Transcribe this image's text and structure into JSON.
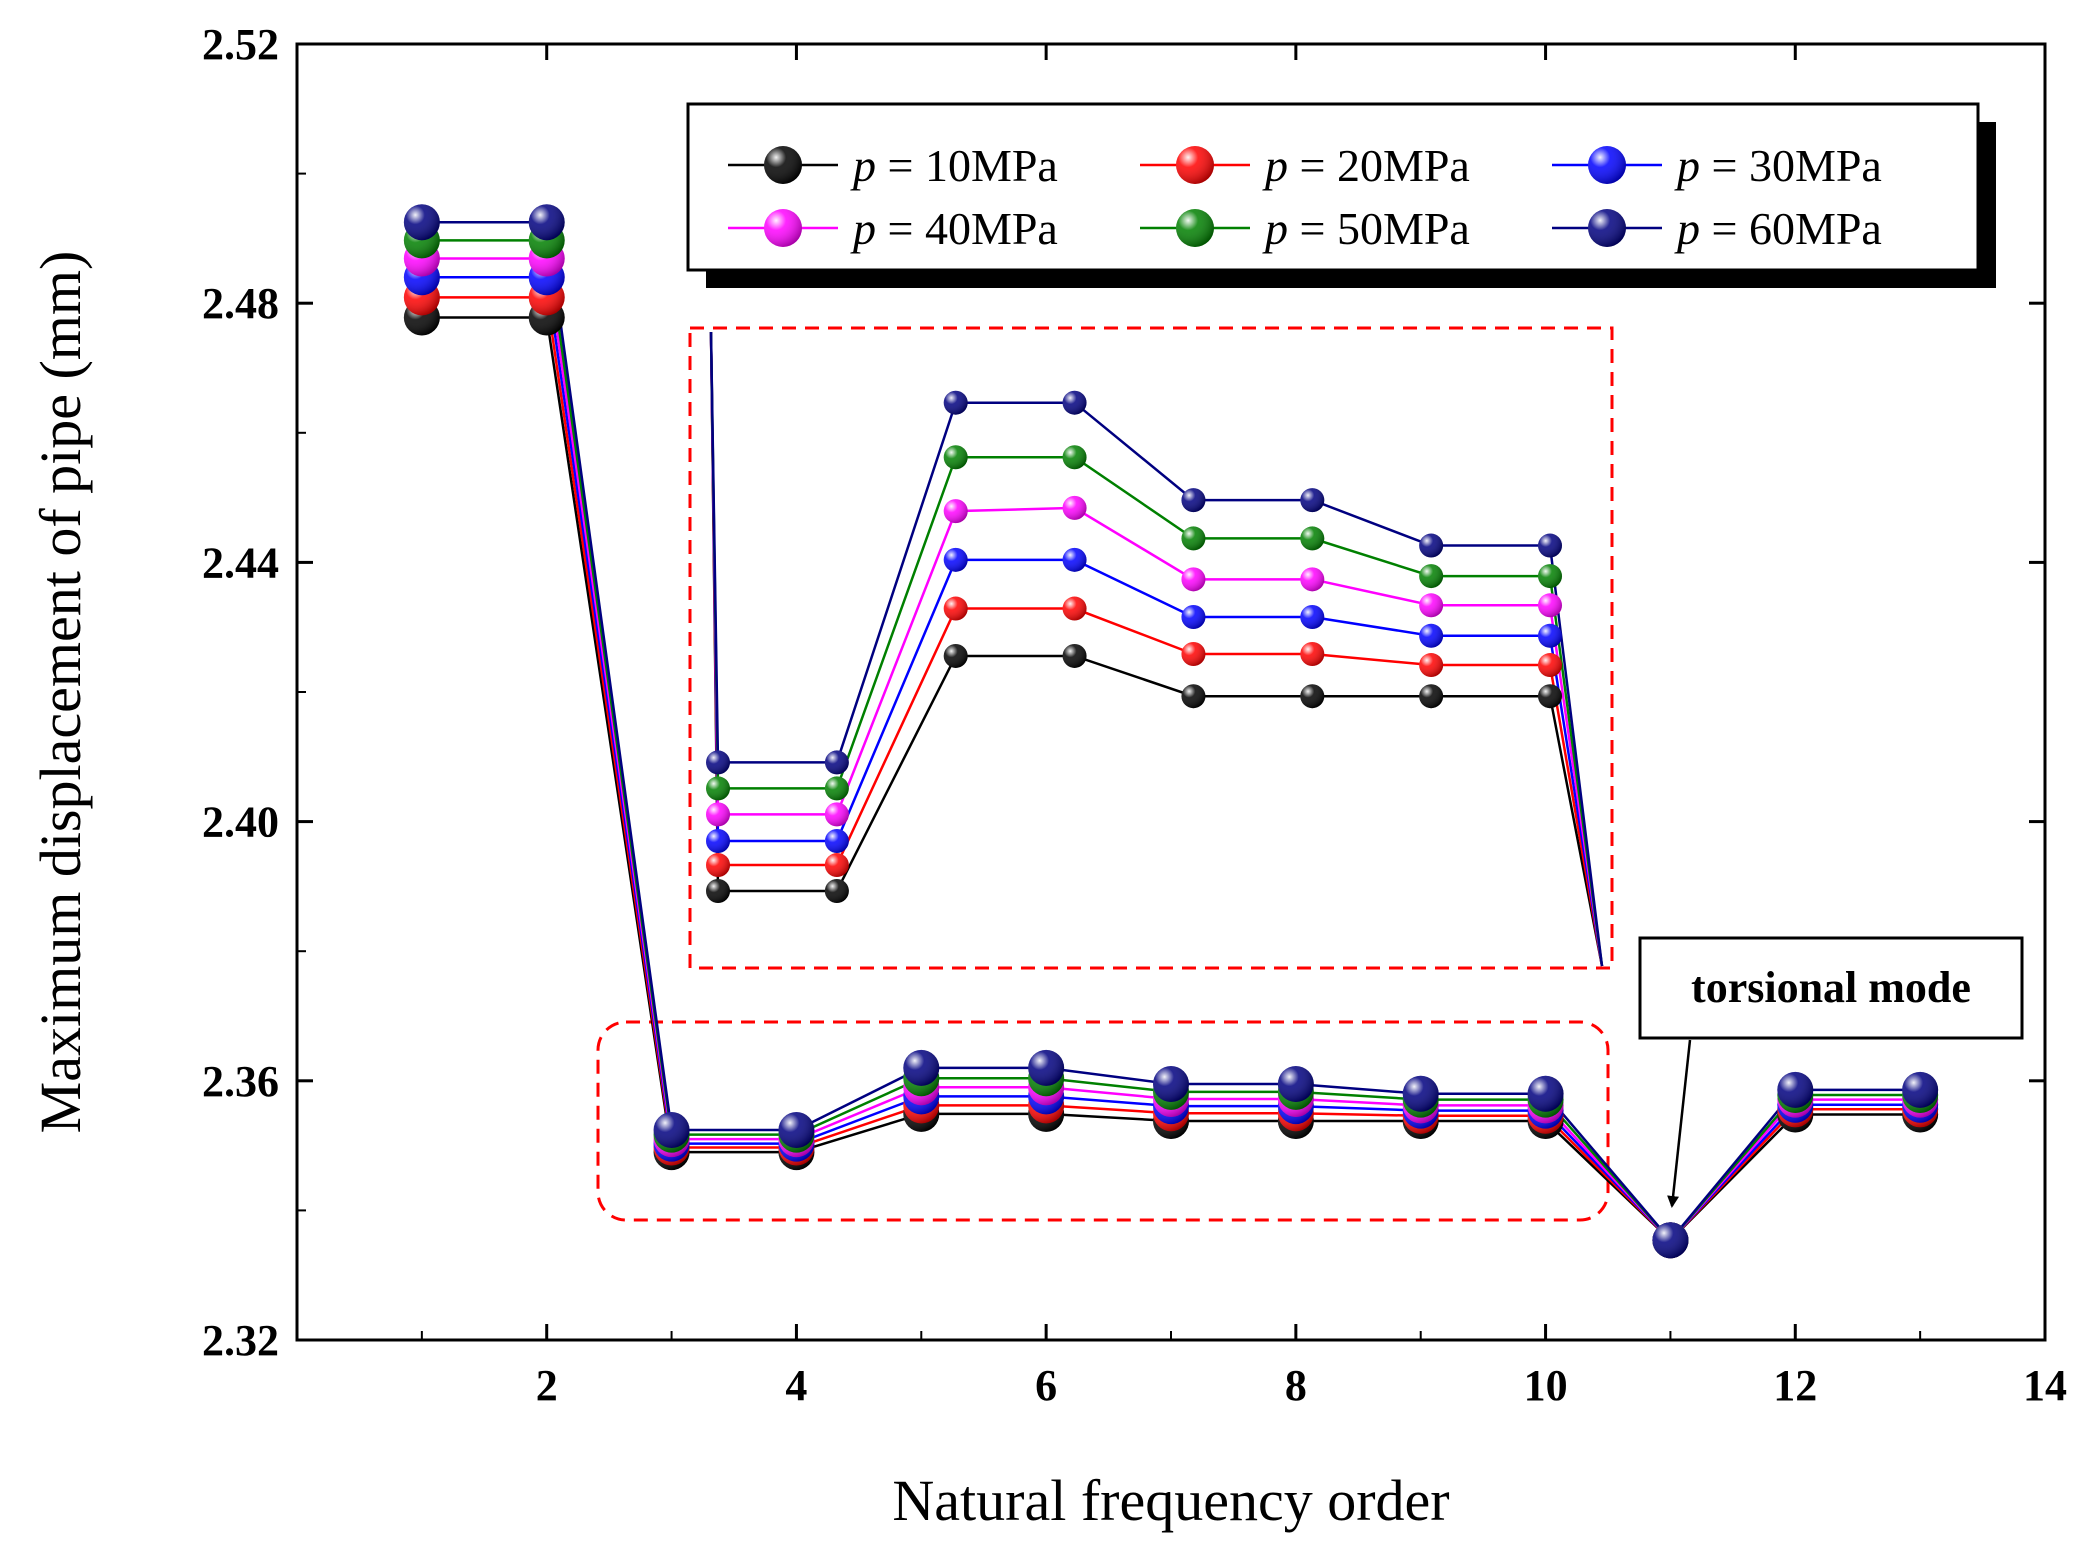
{
  "chart_data": {
    "type": "line",
    "xlabel": "Natural frequency order",
    "ylabel": "Maximum displacement of pipe  (mm)",
    "xlim": [
      0,
      14
    ],
    "ylim": [
      2.32,
      2.52
    ],
    "xticks": [
      2,
      4,
      6,
      8,
      10,
      12,
      14
    ],
    "yticks": [
      2.32,
      2.36,
      2.4,
      2.44,
      2.48,
      2.52
    ],
    "xtick_labels": [
      "2",
      "4",
      "6",
      "8",
      "10",
      "12",
      "14"
    ],
    "ytick_labels": [
      "2.32",
      "2.36",
      "2.40",
      "2.44",
      "2.48",
      "2.52"
    ],
    "x": [
      1,
      2,
      3,
      4,
      5,
      6,
      7,
      8,
      9,
      10,
      11,
      12,
      13
    ],
    "series": [
      {
        "name": "p = 10MPa",
        "p": "p",
        "rest": " = 10MPa",
        "color": "#000000",
        "values": [
          2.4778,
          2.4778,
          2.349,
          2.349,
          2.3549,
          2.3549,
          2.3538,
          2.3538,
          2.3538,
          2.3538,
          2.3354,
          2.3548,
          2.3548
        ]
      },
      {
        "name": "p = 20MPa",
        "p": "p",
        "rest": " = 20MPa",
        "color": "#ff0000",
        "values": [
          2.4809,
          2.4809,
          2.3497,
          2.3497,
          2.3562,
          2.3562,
          2.355,
          2.355,
          2.3546,
          2.3546,
          2.3354,
          2.3556,
          2.3556
        ]
      },
      {
        "name": "p = 30MPa",
        "p": "p",
        "rest": " = 30MPa",
        "color": "#0000ff",
        "values": [
          2.484,
          2.484,
          2.3503,
          2.3503,
          2.3576,
          2.3576,
          2.3561,
          2.3561,
          2.3554,
          2.3554,
          2.3354,
          2.3563,
          2.3563
        ]
      },
      {
        "name": "p = 40MPa",
        "p": "p",
        "rest": " = 40MPa",
        "color": "#ff00ff",
        "values": [
          2.4869,
          2.4869,
          2.351,
          2.351,
          2.359,
          2.359,
          2.3572,
          2.3572,
          2.3562,
          2.3562,
          2.3354,
          2.3571,
          2.3571
        ]
      },
      {
        "name": "p = 50MPa",
        "p": "p",
        "rest": " = 50MPa",
        "color": "#008000",
        "values": [
          2.4897,
          2.4897,
          2.3517,
          2.3517,
          2.3604,
          2.3604,
          2.3583,
          2.3583,
          2.3571,
          2.3571,
          2.3354,
          2.3578,
          2.3578
        ]
      },
      {
        "name": "p = 60MPa",
        "p": "p",
        "rest": " = 60MPa",
        "color": "#000080",
        "values": [
          2.4925,
          2.4925,
          2.3524,
          2.3524,
          2.362,
          2.362,
          2.3595,
          2.3595,
          2.358,
          2.358,
          2.3354,
          2.3586,
          2.3586
        ]
      }
    ],
    "legend_position": "top-right",
    "inset": {
      "description": "zoomed view of orders 3 to 10",
      "x_range": [
        3,
        10
      ],
      "values": [
        [
          2.39,
          2.39,
          2.4262,
          2.4262,
          2.42,
          2.42,
          2.42,
          2.42
        ],
        [
          2.394,
          2.394,
          2.4335,
          2.4335,
          2.4265,
          2.4265,
          2.4248,
          2.4248
        ],
        [
          2.3977,
          2.3977,
          2.441,
          2.441,
          2.4322,
          2.4322,
          2.4293,
          2.4293
        ],
        [
          2.4018,
          2.4018,
          2.4485,
          2.449,
          2.438,
          2.438,
          2.434,
          2.434
        ],
        [
          2.4058,
          2.4058,
          2.4568,
          2.4568,
          2.4443,
          2.4443,
          2.4385,
          2.4385
        ],
        [
          2.4098,
          2.4098,
          2.4652,
          2.4652,
          2.4502,
          2.4502,
          2.4432,
          2.4432
        ]
      ]
    },
    "annotation": {
      "text": "torsional mode",
      "target_x": 11,
      "target_y": 2.3354
    }
  }
}
